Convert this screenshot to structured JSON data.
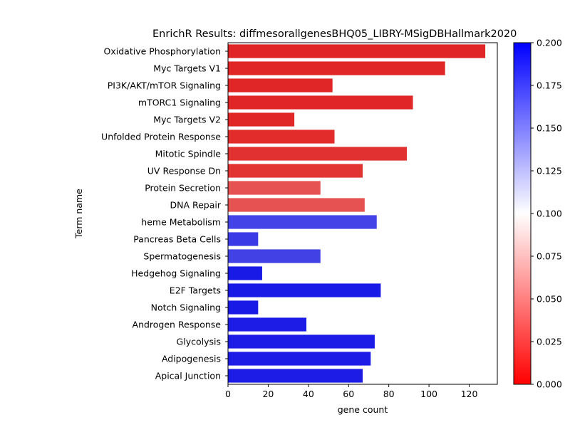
{
  "chart_data": {
    "type": "bar",
    "orientation": "horizontal",
    "title": "EnrichR Results: diffmesorallgenesBHQ05_LIBRY-MSigDBHallmark2020",
    "xlabel": "gene count",
    "ylabel": "Term name",
    "xlim": [
      0,
      134
    ],
    "xticks": [
      "0",
      "20",
      "40",
      "60",
      "80",
      "100",
      "120"
    ],
    "xtick_values": [
      0,
      20,
      40,
      60,
      80,
      100,
      120
    ],
    "grid": false,
    "categories": [
      "Oxidative Phosphorylation",
      "Myc Targets V1",
      "PI3K/AKT/mTOR  Signaling",
      "mTORC1 Signaling",
      "Myc Targets V2",
      "Unfolded Protein Response",
      "Mitotic Spindle",
      "UV Response Dn",
      "Protein Secretion",
      "DNA Repair",
      "heme Metabolism",
      "Pancreas Beta Cells",
      "Spermatogenesis",
      "Hedgehog Signaling",
      "E2F Targets",
      "Notch Signaling",
      "Androgen Response",
      "Glycolysis",
      "Adipogenesis",
      "Apical Junction"
    ],
    "values": [
      128,
      108,
      52,
      92,
      33,
      53,
      89,
      67,
      46,
      68,
      74,
      15,
      46,
      17,
      76,
      15,
      39,
      73,
      71,
      67
    ],
    "colors": [
      "#e02626",
      "#e02626",
      "#e02626",
      "#e02626",
      "#e02626",
      "#e22c2c",
      "#e23131",
      "#e33434",
      "#e65252",
      "#e65252",
      "#4343e8",
      "#3a3ae6",
      "#4141e6",
      "#1a1ae6",
      "#1a1ae6",
      "#1a1ae6",
      "#1c1ce6",
      "#1c1ce6",
      "#1c1ce6",
      "#1c1ce6"
    ],
    "colorbar": {
      "min": 0.0,
      "max": 0.2,
      "ticks": [
        "0.000",
        "0.025",
        "0.050",
        "0.075",
        "0.100",
        "0.125",
        "0.150",
        "0.175",
        "0.200"
      ],
      "tick_values": [
        0.0,
        0.025,
        0.05,
        0.075,
        0.1,
        0.125,
        0.15,
        0.175,
        0.2
      ],
      "colormap": [
        "#ff0000",
        "#ffffff",
        "#0000ff"
      ]
    }
  }
}
